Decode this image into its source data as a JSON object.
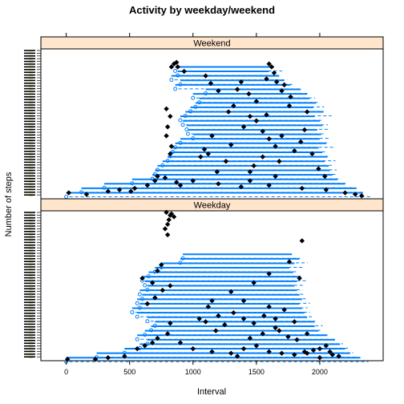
{
  "chart_data": {
    "type": "scatter",
    "title": "Activity by weekday/weekend",
    "xlabel": "Interval",
    "ylabel": "Number of steps",
    "xlim": [
      -200,
      2500
    ],
    "x_ticks": [
      0,
      500,
      1000,
      1500,
      2000
    ],
    "layout": "stacked panels",
    "marker_color": "#000000",
    "segment_color": "#0080ff",
    "panels": [
      {
        "strip": "Weekend",
        "rows": [
          {
            "r": 0.04,
            "x1": 0,
            "x2": 2340
          },
          {
            "r": 0.07,
            "x1": 120,
            "x2": 2290
          },
          {
            "r": 0.1,
            "x1": 300,
            "x2": 2200
          },
          {
            "r": 0.13,
            "x1": 520,
            "x2": 2140
          },
          {
            "r": 0.16,
            "x1": 680,
            "x2": 2100
          },
          {
            "r": 0.19,
            "x1": 700,
            "x2": 2080
          },
          {
            "r": 0.22,
            "x1": 720,
            "x2": 2070
          },
          {
            "r": 0.25,
            "x1": 760,
            "x2": 2040
          },
          {
            "r": 0.28,
            "x1": 800,
            "x2": 2060
          },
          {
            "r": 0.31,
            "x1": 820,
            "x2": 2020
          },
          {
            "r": 0.34,
            "x1": 840,
            "x2": 1990
          },
          {
            "r": 0.37,
            "x1": 860,
            "x2": 2050
          },
          {
            "r": 0.4,
            "x1": 900,
            "x2": 2000
          },
          {
            "r": 0.43,
            "x1": 1000,
            "x2": 2010
          },
          {
            "r": 0.46,
            "x1": 960,
            "x2": 1980
          },
          {
            "r": 0.49,
            "x1": 950,
            "x2": 2020
          },
          {
            "r": 0.52,
            "x1": 920,
            "x2": 2000
          },
          {
            "r": 0.55,
            "x1": 900,
            "x2": 1960
          },
          {
            "r": 0.58,
            "x1": 940,
            "x2": 2030
          },
          {
            "r": 0.61,
            "x1": 980,
            "x2": 1950
          },
          {
            "r": 0.64,
            "x1": 1020,
            "x2": 1970
          },
          {
            "r": 0.67,
            "x1": 1050,
            "x2": 1920
          },
          {
            "r": 0.7,
            "x1": 1000,
            "x2": 1900
          },
          {
            "r": 0.73,
            "x1": 1100,
            "x2": 1850
          },
          {
            "r": 0.76,
            "x1": 860,
            "x2": 1770
          },
          {
            "r": 0.79,
            "x1": 900,
            "x2": 1720
          },
          {
            "r": 0.82,
            "x1": 830,
            "x2": 1680
          },
          {
            "r": 0.85,
            "x1": 880,
            "x2": 1600
          },
          {
            "r": 0.88,
            "x1": 860,
            "x2": 1640
          }
        ],
        "points": [
          {
            "x": 20,
            "r": 0.04
          },
          {
            "x": 160,
            "r": 0.03
          },
          {
            "x": 330,
            "r": 0.05
          },
          {
            "x": 420,
            "r": 0.06
          },
          {
            "x": 510,
            "r": 0.05
          },
          {
            "x": 540,
            "r": 0.07
          },
          {
            "x": 640,
            "r": 0.09
          },
          {
            "x": 700,
            "r": 0.12
          },
          {
            "x": 720,
            "r": 0.15
          },
          {
            "x": 780,
            "r": 0.14
          },
          {
            "x": 870,
            "r": 0.11
          },
          {
            "x": 900,
            "r": 0.09
          },
          {
            "x": 1000,
            "r": 0.12
          },
          {
            "x": 1200,
            "r": 0.1
          },
          {
            "x": 1380,
            "r": 0.08
          },
          {
            "x": 1450,
            "r": 0.12
          },
          {
            "x": 1600,
            "r": 0.09
          },
          {
            "x": 1860,
            "r": 0.07
          },
          {
            "x": 2050,
            "r": 0.06
          },
          {
            "x": 2200,
            "r": 0.04
          },
          {
            "x": 2330,
            "r": 0.02
          },
          {
            "x": 2280,
            "r": 0.03
          },
          {
            "x": 820,
            "r": 0.3
          },
          {
            "x": 830,
            "r": 0.35
          },
          {
            "x": 790,
            "r": 0.42
          },
          {
            "x": 800,
            "r": 0.48
          },
          {
            "x": 820,
            "r": 0.55
          },
          {
            "x": 790,
            "r": 0.6
          },
          {
            "x": 830,
            "r": 0.88
          },
          {
            "x": 850,
            "r": 0.9
          },
          {
            "x": 870,
            "r": 0.91
          },
          {
            "x": 880,
            "r": 0.88
          },
          {
            "x": 930,
            "r": 0.85
          },
          {
            "x": 1100,
            "r": 0.82
          },
          {
            "x": 1140,
            "r": 0.77
          },
          {
            "x": 1200,
            "r": 0.72
          },
          {
            "x": 1350,
            "r": 0.73
          },
          {
            "x": 1380,
            "r": 0.78
          },
          {
            "x": 1440,
            "r": 0.7
          },
          {
            "x": 1500,
            "r": 0.65
          },
          {
            "x": 1580,
            "r": 0.8
          },
          {
            "x": 1600,
            "r": 0.9
          },
          {
            "x": 1620,
            "r": 0.88
          },
          {
            "x": 1640,
            "r": 0.84
          },
          {
            "x": 1660,
            "r": 0.78
          },
          {
            "x": 1700,
            "r": 0.72
          },
          {
            "x": 1720,
            "r": 0.76
          },
          {
            "x": 1760,
            "r": 0.62
          },
          {
            "x": 1770,
            "r": 0.68
          },
          {
            "x": 1280,
            "r": 0.58
          },
          {
            "x": 1320,
            "r": 0.62
          },
          {
            "x": 1400,
            "r": 0.48
          },
          {
            "x": 1450,
            "r": 0.55
          },
          {
            "x": 1500,
            "r": 0.52
          },
          {
            "x": 1550,
            "r": 0.45
          },
          {
            "x": 1600,
            "r": 0.4
          },
          {
            "x": 1650,
            "r": 0.35
          },
          {
            "x": 1700,
            "r": 0.42
          },
          {
            "x": 1150,
            "r": 0.42
          },
          {
            "x": 1120,
            "r": 0.3
          },
          {
            "x": 1060,
            "r": 0.28
          },
          {
            "x": 1090,
            "r": 0.33
          },
          {
            "x": 1260,
            "r": 0.25
          },
          {
            "x": 1480,
            "r": 0.22
          },
          {
            "x": 1550,
            "r": 0.28
          },
          {
            "x": 1680,
            "r": 0.25
          },
          {
            "x": 1800,
            "r": 0.32
          },
          {
            "x": 1850,
            "r": 0.38
          },
          {
            "x": 1880,
            "r": 0.46
          },
          {
            "x": 1940,
            "r": 0.3
          },
          {
            "x": 1990,
            "r": 0.2
          },
          {
            "x": 2040,
            "r": 0.15
          },
          {
            "x": 1900,
            "r": 0.58
          },
          {
            "x": 1450,
            "r": 0.18
          },
          {
            "x": 1650,
            "r": 0.15
          },
          {
            "x": 1190,
            "r": 0.18
          },
          {
            "x": 1300,
            "r": 0.36
          },
          {
            "x": 1580,
            "r": 0.56
          }
        ]
      },
      {
        "strip": "Weekday",
        "rows": [
          {
            "r": 0.02,
            "x1": 0,
            "x2": 2320
          },
          {
            "r": 0.05,
            "x1": 240,
            "x2": 2240
          },
          {
            "r": 0.08,
            "x1": 460,
            "x2": 2200
          },
          {
            "r": 0.11,
            "x1": 580,
            "x2": 2160
          },
          {
            "r": 0.14,
            "x1": 640,
            "x2": 2120
          },
          {
            "r": 0.17,
            "x1": 560,
            "x2": 2060
          },
          {
            "r": 0.2,
            "x1": 620,
            "x2": 1990
          },
          {
            "r": 0.23,
            "x1": 670,
            "x2": 1960
          },
          {
            "r": 0.26,
            "x1": 700,
            "x2": 1960
          },
          {
            "r": 0.29,
            "x1": 640,
            "x2": 1900
          },
          {
            "r": 0.32,
            "x1": 560,
            "x2": 1880
          },
          {
            "r": 0.35,
            "x1": 520,
            "x2": 1860
          },
          {
            "r": 0.38,
            "x1": 580,
            "x2": 1840
          },
          {
            "r": 0.41,
            "x1": 560,
            "x2": 1860
          },
          {
            "r": 0.44,
            "x1": 600,
            "x2": 1840
          },
          {
            "r": 0.47,
            "x1": 580,
            "x2": 1820
          },
          {
            "r": 0.5,
            "x1": 640,
            "x2": 1800
          },
          {
            "r": 0.53,
            "x1": 620,
            "x2": 1820
          },
          {
            "r": 0.56,
            "x1": 600,
            "x2": 1840
          },
          {
            "r": 0.59,
            "x1": 650,
            "x2": 1790
          },
          {
            "r": 0.62,
            "x1": 700,
            "x2": 1760
          },
          {
            "r": 0.65,
            "x1": 750,
            "x2": 1800
          },
          {
            "r": 0.68,
            "x1": 900,
            "x2": 1840
          },
          {
            "r": 0.71,
            "x1": 920,
            "x2": 1780
          }
        ],
        "points": [
          {
            "x": 10,
            "r": 0.01
          },
          {
            "x": 230,
            "r": 0.01
          },
          {
            "x": 330,
            "r": 0.02
          },
          {
            "x": 460,
            "r": 0.03
          },
          {
            "x": 560,
            "r": 0.08
          },
          {
            "x": 620,
            "r": 0.1
          },
          {
            "x": 680,
            "r": 0.12
          },
          {
            "x": 720,
            "r": 0.15
          },
          {
            "x": 800,
            "r": 0.18
          },
          {
            "x": 820,
            "r": 0.25
          },
          {
            "x": 900,
            "r": 0.12
          },
          {
            "x": 1000,
            "r": 0.08
          },
          {
            "x": 1150,
            "r": 0.06
          },
          {
            "x": 1300,
            "r": 0.05
          },
          {
            "x": 1400,
            "r": 0.08
          },
          {
            "x": 1500,
            "r": 0.1
          },
          {
            "x": 1600,
            "r": 0.06
          },
          {
            "x": 1700,
            "r": 0.05
          },
          {
            "x": 1800,
            "r": 0.04
          },
          {
            "x": 1900,
            "r": 0.05
          },
          {
            "x": 1950,
            "r": 0.07
          },
          {
            "x": 2000,
            "r": 0.08
          },
          {
            "x": 2050,
            "r": 0.1
          },
          {
            "x": 2100,
            "r": 0.04
          },
          {
            "x": 2150,
            "r": 0.03
          },
          {
            "x": 2000,
            "r": 0.02
          },
          {
            "x": 1880,
            "r": 0.06
          },
          {
            "x": 2080,
            "r": 0.06
          },
          {
            "x": 1350,
            "r": 0.03
          },
          {
            "x": 1450,
            "r": 0.15
          },
          {
            "x": 1550,
            "r": 0.18
          },
          {
            "x": 1650,
            "r": 0.22
          },
          {
            "x": 1750,
            "r": 0.16
          },
          {
            "x": 1180,
            "r": 0.2
          },
          {
            "x": 1250,
            "r": 0.24
          },
          {
            "x": 1100,
            "r": 0.26
          },
          {
            "x": 1050,
            "r": 0.28
          },
          {
            "x": 1200,
            "r": 0.3
          },
          {
            "x": 1320,
            "r": 0.32
          },
          {
            "x": 1400,
            "r": 0.28
          },
          {
            "x": 1480,
            "r": 0.25
          },
          {
            "x": 1560,
            "r": 0.3
          },
          {
            "x": 1650,
            "r": 0.28
          },
          {
            "x": 1720,
            "r": 0.34
          },
          {
            "x": 1800,
            "r": 0.26
          },
          {
            "x": 1600,
            "r": 0.36
          },
          {
            "x": 1680,
            "r": 0.2
          },
          {
            "x": 1900,
            "r": 0.18
          },
          {
            "x": 1820,
            "r": 0.14
          },
          {
            "x": 640,
            "r": 0.38
          },
          {
            "x": 700,
            "r": 0.42
          },
          {
            "x": 760,
            "r": 0.47
          },
          {
            "x": 820,
            "r": 0.5
          },
          {
            "x": 680,
            "r": 0.52
          },
          {
            "x": 600,
            "r": 0.55
          },
          {
            "x": 720,
            "r": 0.6
          },
          {
            "x": 750,
            "r": 0.64
          },
          {
            "x": 1150,
            "r": 0.4
          },
          {
            "x": 1120,
            "r": 0.36
          },
          {
            "x": 1300,
            "r": 0.46
          },
          {
            "x": 1400,
            "r": 0.4
          },
          {
            "x": 1480,
            "r": 0.52
          },
          {
            "x": 1600,
            "r": 0.58
          },
          {
            "x": 1840,
            "r": 0.55
          },
          {
            "x": 1760,
            "r": 0.66
          },
          {
            "x": 1860,
            "r": 0.8
          },
          {
            "x": 800,
            "r": 0.84
          },
          {
            "x": 780,
            "r": 0.88
          },
          {
            "x": 800,
            "r": 0.91
          },
          {
            "x": 810,
            "r": 0.94
          },
          {
            "x": 820,
            "r": 0.97
          },
          {
            "x": 830,
            "r": 0.98
          },
          {
            "x": 790,
            "r": 0.99
          },
          {
            "x": 850,
            "r": 0.96
          }
        ]
      }
    ]
  }
}
